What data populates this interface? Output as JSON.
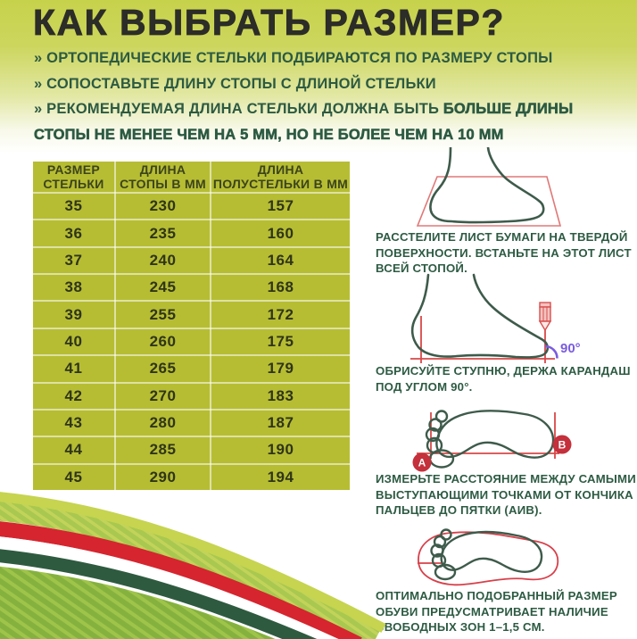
{
  "header": {
    "title": "КАК ВЫБРАТЬ РАЗМЕР?",
    "bullet1": "» ОРТОПЕДИЧЕСКИЕ СТЕЛЬКИ ПОДБИРАЮТСЯ ПО РАЗМЕРУ СТОПЫ",
    "bullet2": "» СОПОСТАВЬТЕ ДЛИНУ СТОПЫ С ДЛИНОЙ СТЕЛЬКИ",
    "bullet3_lead": "» РЕКОМЕНДУЕМАЯ ДЛИНА СТЕЛЬКИ ДОЛЖНА БЫТЬ ",
    "bullet3_strong": "БОЛЬШЕ ДЛИНЫ СТОПЫ НЕ МЕНЕЕ ЧЕМ НА 5 ММ, НО НЕ БОЛЕЕ ЧЕМ НА 10 ММ"
  },
  "table": {
    "headers": [
      "РАЗМЕР СТЕЛЬКИ",
      "ДЛИНА СТОПЫ В ММ",
      "ДЛИНА ПОЛУСТЕЛЬКИ В ММ"
    ],
    "rows": [
      [
        "35",
        "230",
        "157"
      ],
      [
        "36",
        "235",
        "160"
      ],
      [
        "37",
        "240",
        "164"
      ],
      [
        "38",
        "245",
        "168"
      ],
      [
        "39",
        "255",
        "172"
      ],
      [
        "40",
        "260",
        "175"
      ],
      [
        "41",
        "265",
        "179"
      ],
      [
        "42",
        "270",
        "183"
      ],
      [
        "43",
        "280",
        "187"
      ],
      [
        "44",
        "285",
        "190"
      ],
      [
        "45",
        "290",
        "194"
      ]
    ]
  },
  "steps": [
    {
      "caption": "РАССТЕЛИТЕ ЛИСТ БУМАГИ НА ТВЕРДОЙ ПОВЕРХНОСТИ. ВСТАНЬТЕ НА ЭТОТ ЛИСТ ВСЕЙ СТОПОЙ."
    },
    {
      "caption": "ОБРИСУЙТЕ СТУПНЮ, ДЕРЖА КАРАНДАШ ПОД УГЛОМ 90°.",
      "angle_label": "90°"
    },
    {
      "caption": "ИЗМЕРЬТЕ РАССТОЯНИЕ МЕЖДУ САМЫМИ ВЫСТУПАЮЩИМИ ТОЧКАМИ ОТ КОНЧИКА ПАЛЬЦЕВ ДО ПЯТКИ (АИВ).",
      "marker_a": "А",
      "marker_b": "В"
    },
    {
      "caption": "ОПТИМАЛЬНО ПОДОБРАННЫЙ РАЗМЕР ОБУВИ ПРЕДУСМАТРИВАЕТ НАЛИЧИЕ СВОБОДНЫХ ЗОН 1–1,5 СМ."
    }
  ],
  "colors": {
    "table_green": "#b6bd33",
    "text_green": "#2d5b43",
    "title_dark": "#2c2c28",
    "outline_green": "#3e5b4b",
    "accent_red": "#d6303a",
    "paper_red": "#e07878",
    "angle_purple": "#7a5ce0"
  }
}
